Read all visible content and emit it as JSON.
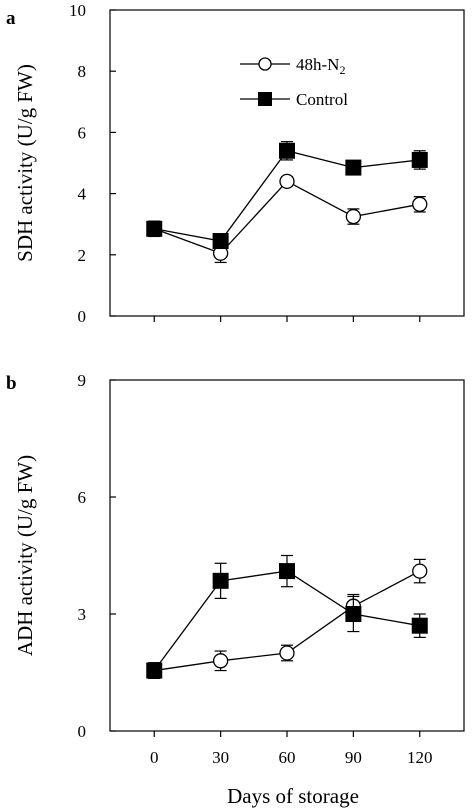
{
  "chart_data": [
    {
      "type": "line",
      "panel_label": "a",
      "ylabel": "SDH activity (U/g FW)",
      "xlabel": "",
      "x": [
        0,
        30,
        60,
        90,
        120
      ],
      "xlim": [
        -20,
        140
      ],
      "ylim": [
        0,
        10
      ],
      "yticks": [
        0,
        2,
        4,
        6,
        8,
        10
      ],
      "xticks": [],
      "legend": "top-center",
      "grid": false,
      "series": [
        {
          "name": "48h-N",
          "name_sub": "2",
          "marker": "open-circle",
          "values": [
            2.85,
            2.05,
            4.4,
            3.25,
            3.65
          ],
          "errors": [
            0.25,
            0.3,
            0.15,
            0.25,
            0.25
          ]
        },
        {
          "name": "Control",
          "marker": "filled-square",
          "values": [
            2.85,
            2.45,
            5.4,
            4.85,
            5.1
          ],
          "errors": [
            0.25,
            0.15,
            0.3,
            0.15,
            0.3
          ]
        }
      ]
    },
    {
      "type": "line",
      "panel_label": "b",
      "ylabel": "ADH activity (U/g FW)",
      "xlabel": "Days of storage",
      "x": [
        0,
        30,
        60,
        90,
        120
      ],
      "xlim": [
        -20,
        140
      ],
      "ylim": [
        0,
        9
      ],
      "yticks": [
        0,
        3,
        6,
        9
      ],
      "xticks": [
        0,
        30,
        60,
        90,
        120
      ],
      "grid": false,
      "series": [
        {
          "name": "48h-N2",
          "marker": "open-circle",
          "values": [
            1.55,
            1.8,
            2.0,
            3.2,
            4.1
          ],
          "errors": [
            0.2,
            0.25,
            0.2,
            0.3,
            0.3
          ]
        },
        {
          "name": "Control",
          "marker": "filled-square",
          "values": [
            1.55,
            3.85,
            4.1,
            3.0,
            2.7
          ],
          "errors": [
            0.2,
            0.45,
            0.4,
            0.45,
            0.3
          ]
        }
      ]
    }
  ]
}
